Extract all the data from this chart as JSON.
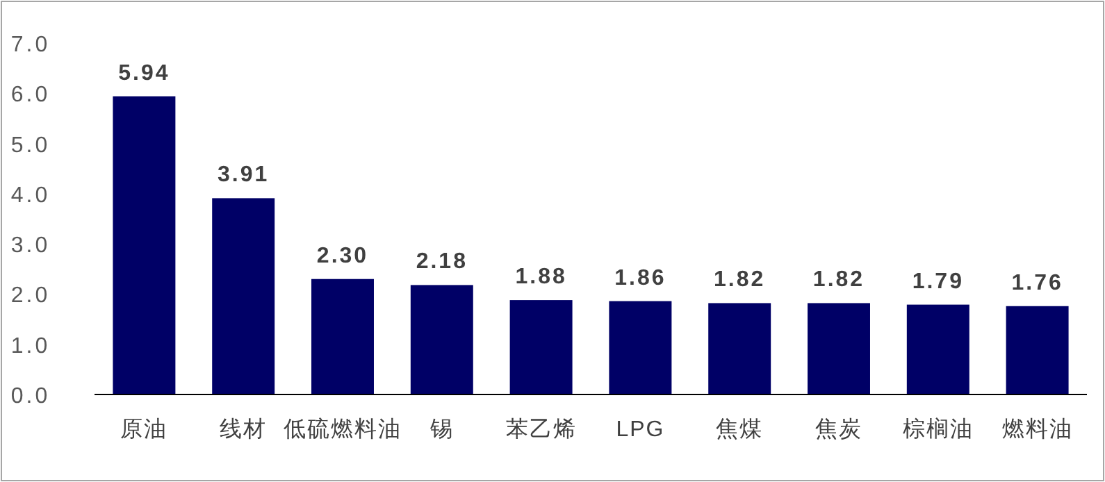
{
  "chart_data": {
    "type": "bar",
    "categories": [
      "原油",
      "线材",
      "低硫燃料油",
      "锡",
      "苯乙烯",
      "LPG",
      "焦煤",
      "焦炭",
      "棕榈油",
      "燃料油"
    ],
    "values": [
      5.94,
      3.91,
      2.3,
      2.18,
      1.88,
      1.86,
      1.82,
      1.82,
      1.79,
      1.76
    ],
    "value_labels": [
      "5.94",
      "3.91",
      "2.30",
      "2.18",
      "1.88",
      "1.86",
      "1.82",
      "1.82",
      "1.79",
      "1.76"
    ],
    "color": "#000066",
    "ylim": [
      0,
      7
    ],
    "yticks": [
      {
        "value": 0,
        "label": "0.0"
      },
      {
        "value": 1,
        "label": "1.0"
      },
      {
        "value": 2,
        "label": "2.0"
      },
      {
        "value": 3,
        "label": "3.0"
      },
      {
        "value": 4,
        "label": "4.0"
      },
      {
        "value": 5,
        "label": "5.0"
      },
      {
        "value": 6,
        "label": "6.0"
      },
      {
        "value": 7,
        "label": "7.0"
      }
    ],
    "grid": false
  }
}
